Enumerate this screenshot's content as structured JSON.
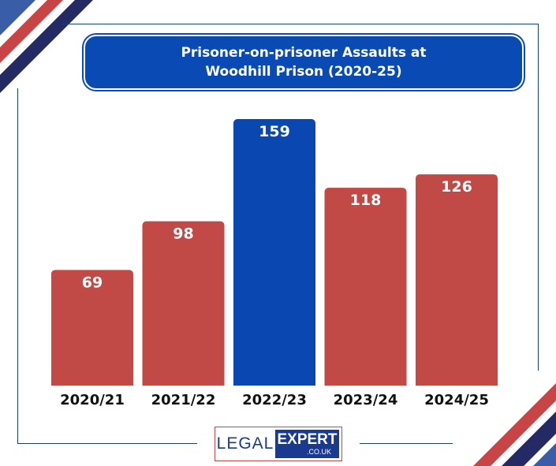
{
  "header": {
    "title_line1": "Prisoner-on-prisoner Assaults at",
    "title_line2": "Woodhill Prison (2020-25)"
  },
  "logo": {
    "left_text": "LEGAL",
    "right_text": "EXPERT",
    "sub_text": ".CO.UK"
  },
  "colors": {
    "bar_default": "#c14a47",
    "bar_highlight": "#0a47b0",
    "brand_navy": "#1a3a8f",
    "stripe_red": "#c94444",
    "stripe_dark": "#242a63",
    "stripe_blue": "#3a5da8"
  },
  "chart_data": {
    "type": "bar",
    "title": "Prisoner-on-prisoner Assaults at Woodhill Prison (2020-25)",
    "categories": [
      "2020/21",
      "2021/22",
      "2022/23",
      "2023/24",
      "2024/25"
    ],
    "values": [
      69,
      98,
      159,
      118,
      126
    ],
    "data_labels": [
      "69",
      "98",
      "159",
      "118",
      "126"
    ],
    "highlight_index": 2,
    "xlabel": "",
    "ylabel": "",
    "ylim": [
      0,
      159
    ],
    "grid": false,
    "legend": "none"
  }
}
